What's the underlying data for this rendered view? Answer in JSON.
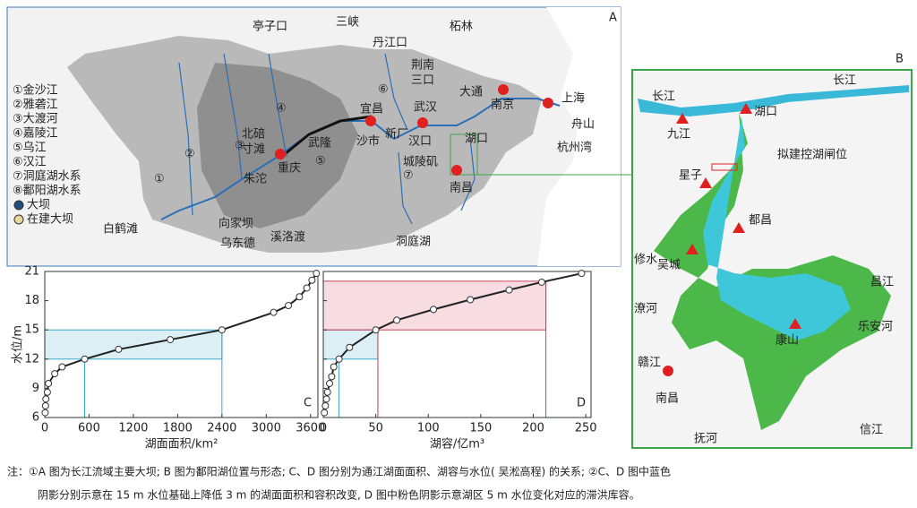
{
  "map_a": {
    "panel": "A",
    "legend": [
      "①金沙江",
      "②雅砻江",
      "③大渡河",
      "④嘉陵江",
      "⑤乌江",
      "⑥汉江",
      "⑦洞庭湖水系",
      "⑧鄱阳湖水系",
      "大坝",
      "在建大坝"
    ],
    "labels": [
      "亭子口",
      "三峡",
      "丹江口",
      "柘林",
      "荆南",
      "三口",
      "大通",
      "南京",
      "上海",
      "舟山",
      "杭州湾",
      "宜昌",
      "武汉",
      "湖口",
      "沙市",
      "新厂",
      "汉口",
      "城陵矶",
      "南昌",
      "北碚",
      "寸滩",
      "重庆",
      "武隆",
      "朱沱",
      "向家坝",
      "乌东德",
      "溪洛渡",
      "白鹤滩",
      "洞庭湖"
    ],
    "river_numbers": [
      "①",
      "②",
      "③",
      "④",
      "⑤",
      "⑥",
      "⑦"
    ]
  },
  "map_b": {
    "panel": "B",
    "labels": [
      "长江",
      "长江",
      "湖口",
      "九江",
      "拟建控湖闸位",
      "星子",
      "都昌",
      "吴城",
      "修水",
      "潦河",
      "康山",
      "昌江",
      "乐安河",
      "赣江",
      "南昌",
      "抚河",
      "信江"
    ]
  },
  "chart_data": [
    {
      "type": "line",
      "panel": "C",
      "xlabel": "湖面面积/km²",
      "ylabel": "水位/m",
      "color": "#222222",
      "x": [
        5,
        10,
        15,
        35,
        50,
        135,
        235,
        540,
        1000,
        1700,
        2400,
        3100,
        3300,
        3450,
        3550,
        3620,
        3680
      ],
      "values": [
        6.5,
        7.2,
        7.9,
        8.6,
        9.5,
        10.5,
        11.2,
        12,
        13,
        14,
        15,
        16.8,
        17.5,
        18.4,
        19.3,
        20.1,
        20.8
      ],
      "xlim": [
        0,
        3700
      ],
      "ylim": [
        6,
        21
      ],
      "xticks": [
        0,
        600,
        1200,
        1800,
        2400,
        3000,
        3600
      ],
      "yticks": [
        6,
        9,
        12,
        15,
        18,
        21
      ],
      "highlights": [
        {
          "color": "#3aa6c8",
          "x": [
            540,
            2400
          ],
          "y": [
            12,
            15
          ]
        }
      ]
    },
    {
      "type": "line",
      "panel": "D",
      "xlabel": "湖容/亿m³",
      "color": "#222222",
      "x": [
        1,
        2,
        3,
        4,
        6,
        8,
        10,
        15,
        25,
        50,
        70,
        105,
        140,
        177,
        208,
        246
      ],
      "values": [
        6.5,
        7.2,
        7.9,
        8.6,
        9.5,
        10.2,
        11.2,
        12,
        13.2,
        15,
        16,
        17.1,
        18.1,
        19.1,
        19.9,
        20.8
      ],
      "xlim": [
        0,
        255
      ],
      "ylim": [
        6,
        21
      ],
      "xticks": [
        0,
        50,
        100,
        150,
        200,
        250
      ],
      "yticks": [
        6,
        9,
        12,
        15,
        18,
        21
      ],
      "highlights": [
        {
          "color": "#3aa6c8",
          "x": [
            15,
            52
          ],
          "y": [
            12,
            15
          ]
        },
        {
          "color": "#d0405a",
          "x": [
            52,
            212
          ],
          "y": [
            15,
            20
          ]
        }
      ]
    }
  ],
  "caption": [
    "注：①A 图为长江流域主要大坝; B 图为鄱阳湖位置与形态; C、D 图分别为通江湖面面积、湖容与水位( 吴淞高程) 的关系; ②C、D 图中蓝色",
    "阴影分别示意在 15 m 水位基础上降低 3 m 的湖面面积和容积改变, D 图中粉色阴影示意湖区 5 m 水位变化对应的滞洪库容。"
  ]
}
